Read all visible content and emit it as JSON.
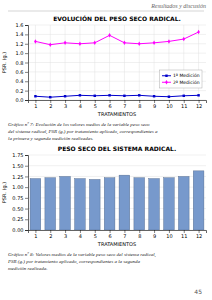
{
  "header": "Resultados y discusión",
  "page_number": "45",
  "chart_data": [
    {
      "type": "line",
      "title": "EVOLUCIÓN DEL PESO SECO RADICAL.",
      "xlabel": "TRATAMIENTOS",
      "ylabel": "PSR. (g.)",
      "x": [
        1,
        2,
        3,
        4,
        5,
        6,
        7,
        8,
        9,
        10,
        11,
        12
      ],
      "xlim": [
        0.5,
        12.5
      ],
      "xticks": [
        1,
        2,
        3,
        4,
        5,
        6,
        7,
        8,
        9,
        10,
        11,
        12
      ],
      "ylim": [
        0.0,
        1.6
      ],
      "yticks": [
        {
          "value": 0.0,
          "label": "0.0"
        },
        0.2,
        0.4,
        0.6,
        0.8,
        {
          "value": 1.0,
          "label": "1.0"
        },
        1.2,
        1.4,
        1.6
      ],
      "grid": true,
      "legend": "lower right",
      "series": [
        {
          "name": "1ª Medición",
          "color": "#0000cc",
          "marker": "square",
          "values": [
            0.08,
            0.06,
            0.08,
            0.1,
            0.09,
            0.1,
            0.09,
            0.1,
            0.08,
            0.07,
            0.09,
            0.1
          ]
        },
        {
          "name": "2ª Medición",
          "color": "#ff00ff",
          "marker": "diamond",
          "values": [
            1.25,
            1.18,
            1.22,
            1.2,
            1.22,
            1.38,
            1.22,
            1.2,
            1.22,
            1.25,
            1.3,
            1.45
          ]
        }
      ],
      "caption": [
        "Gráfico nº 7: Evolución de los valores medios de la variable peso seco",
        "del sistema radical, PSR (g.) por tratamiento aplicado, correspondientes a",
        "la primera y segunda medición realizadas."
      ]
    },
    {
      "type": "bar",
      "title": "PESO SECO DEL SISTEMA RADICAL.",
      "xlabel": "TRATAMIENTOS",
      "ylabel": "PSR. (g.)",
      "x": [
        1,
        2,
        3,
        4,
        5,
        6,
        7,
        8,
        9,
        10,
        11,
        12
      ],
      "xlim": [
        0.5,
        12.5
      ],
      "xticks": [
        1,
        2,
        3,
        4,
        5,
        6,
        7,
        8,
        9,
        10,
        11,
        12
      ],
      "ylim": [
        0.0,
        1.75
      ],
      "yticks": [
        {
          "value": 0.0,
          "label": "0.00"
        },
        0.25,
        {
          "value": 0.5,
          "label": "0.50"
        },
        0.75,
        {
          "value": 1.0,
          "label": "1.00"
        },
        1.25,
        {
          "value": 1.5,
          "label": "1.50"
        },
        1.75
      ],
      "grid": "y",
      "color": "#7799cc",
      "values": [
        1.2,
        1.22,
        1.25,
        1.2,
        1.18,
        1.22,
        1.28,
        1.22,
        1.2,
        1.22,
        1.25,
        1.38
      ],
      "caption": [
        "Gráfico nº 8: Valores medios de la variable peso seco del sistema radical,",
        "PSR (g.) por tratamiento aplicado, correspondientes a la segunda",
        "medición realizada."
      ]
    }
  ]
}
